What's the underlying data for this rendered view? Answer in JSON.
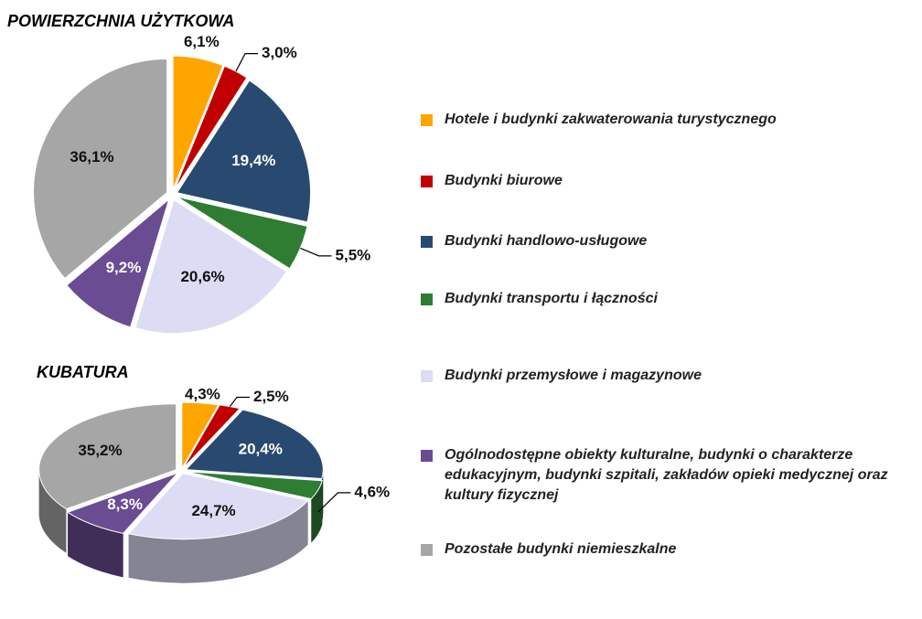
{
  "chart_data": [
    {
      "type": "pie",
      "title": "POWIERZCHNIA UŻYTKOWA",
      "categories": [
        "Hotele i budynki zakwaterowania turystycznego",
        "Budynki biurowe",
        "Budynki handlowo-usługowe",
        "Budynki transportu i łączności",
        "Budynki przemysłowe i magazynowe",
        "Ogólnodostępne obiekty kulturalne, budynki o charakterze edukacyjnym, budynki szpitali, zakładów opieki medycznej oraz kultury fizycznej",
        "Pozostałe budynki niemieszkalne"
      ],
      "colors": [
        "#ffa500",
        "#c00000",
        "#294a70",
        "#2e7d32",
        "#dcdcf5",
        "#6a4c93",
        "#a6a6a6"
      ],
      "values": [
        6.1,
        3.0,
        19.4,
        5.5,
        20.6,
        9.2,
        36.1
      ],
      "value_labels": [
        "6,1%",
        "3,0%",
        "19,4%",
        "5,5%",
        "20,6%",
        "9,2%",
        "36,1%"
      ]
    },
    {
      "type": "pie3d",
      "title": "KUBATURA",
      "values": [
        4.3,
        2.5,
        20.4,
        4.6,
        24.7,
        8.3,
        35.2
      ],
      "value_labels": [
        "4,3%",
        "2,5%",
        "20,4%",
        "4,6%",
        "24,7%",
        "8,3%",
        "35,2%"
      ]
    }
  ]
}
